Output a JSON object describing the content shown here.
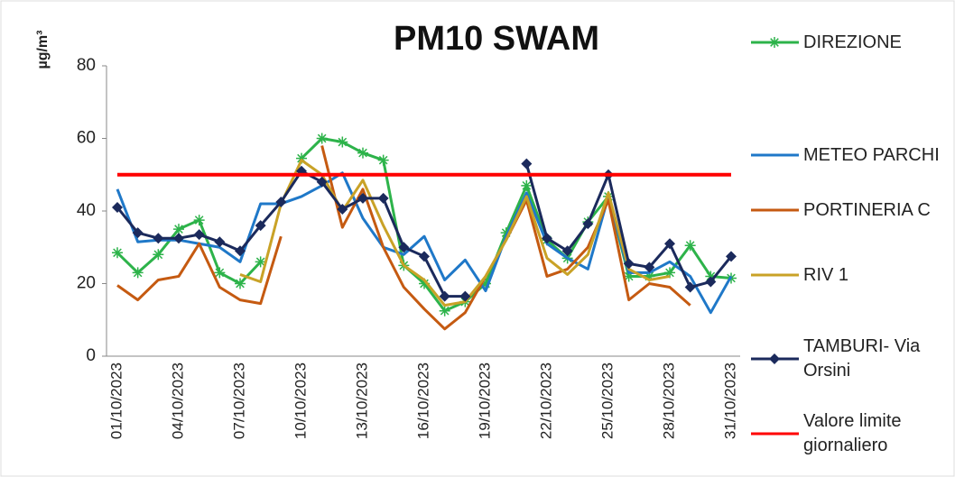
{
  "chart_data": {
    "type": "line",
    "title": "PM10 SWAM",
    "y_label": "µg/m³",
    "categories": [
      "01/10/2023",
      null,
      null,
      "04/10/2023",
      null,
      null,
      "07/10/2023",
      null,
      null,
      "10/10/2023",
      null,
      null,
      "13/10/2023",
      null,
      null,
      "16/10/2023",
      null,
      null,
      "19/10/2023",
      null,
      null,
      "22/10/2023",
      null,
      null,
      "25/10/2023",
      null,
      null,
      "28/10/2023",
      null,
      null,
      "31/10/2023"
    ],
    "ylim": [
      0,
      80
    ],
    "yticks": [
      0,
      20,
      40,
      60,
      80
    ],
    "grid": false,
    "legend": "right",
    "series": [
      {
        "name": "DIREZIONE",
        "color": "#2db34a",
        "marker": "asterisk",
        "values": [
          28.5,
          23,
          28,
          35,
          37.5,
          23,
          20,
          26,
          null,
          54.5,
          60,
          59,
          56,
          54,
          25,
          20,
          12.5,
          15,
          20,
          34,
          47,
          32,
          27,
          37,
          44,
          22,
          22,
          23,
          30.5,
          22,
          21.5
        ]
      },
      {
        "name": "METEO PARCHI",
        "color": "#1f78c8",
        "marker": null,
        "values": [
          46,
          31.5,
          32,
          32,
          31,
          30,
          26,
          42,
          42,
          44,
          47,
          50.5,
          38,
          30,
          28,
          33,
          21,
          26.5,
          18,
          33,
          45,
          31,
          27,
          24,
          44,
          23,
          23,
          26,
          22,
          12,
          22
        ]
      },
      {
        "name": "PORTINERIA C",
        "color": "#c55a11",
        "marker": null,
        "values": [
          19.5,
          15.5,
          21,
          22,
          31,
          19,
          15.5,
          14.5,
          33,
          null,
          58,
          35.5,
          46,
          30,
          19,
          13,
          7.5,
          12,
          22,
          32,
          43,
          22,
          24,
          30,
          43,
          15.5,
          20,
          19,
          14,
          null,
          null
        ]
      },
      {
        "name": "RIV 1",
        "color": "#c9a227",
        "marker": null,
        "values": [
          null,
          null,
          null,
          null,
          null,
          null,
          22.5,
          20.5,
          42,
          54,
          50,
          40,
          48.5,
          36,
          25,
          21,
          14,
          15,
          22,
          32,
          44,
          27,
          22.5,
          28,
          45,
          24,
          21,
          22,
          null,
          null,
          null
        ]
      },
      {
        "name": "TAMBURI- Via Orsini",
        "color": "#1b2a5c",
        "marker": "diamond",
        "values": [
          41,
          34,
          32.5,
          32.5,
          33.5,
          31.5,
          29,
          36,
          42.5,
          51,
          48,
          40.5,
          43.5,
          43.5,
          30,
          27.5,
          16.5,
          16.5,
          null,
          null,
          53,
          32.5,
          29,
          36.5,
          50,
          25.5,
          24.5,
          31,
          19,
          20.5,
          27.5
        ]
      },
      {
        "name": "Valore limite giornaliero",
        "color": "#ff0000",
        "marker": null,
        "values": [
          50,
          50,
          50,
          50,
          50,
          50,
          50,
          50,
          50,
          50,
          50,
          50,
          50,
          50,
          50,
          50,
          50,
          50,
          50,
          50,
          50,
          50,
          50,
          50,
          50,
          50,
          50,
          50,
          50,
          50,
          50
        ]
      }
    ]
  }
}
